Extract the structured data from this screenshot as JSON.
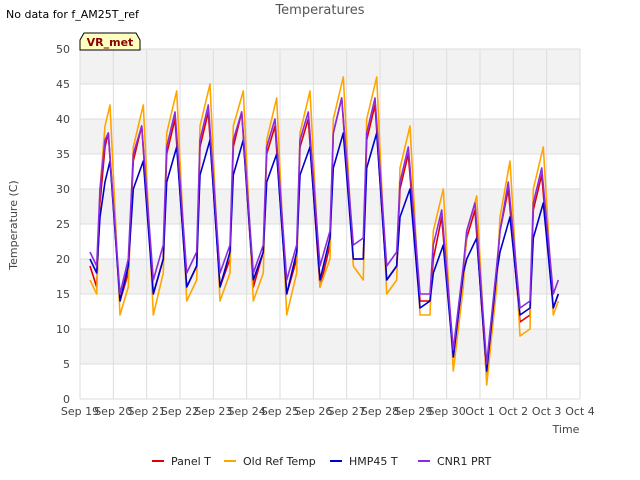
{
  "note": "No data for f_AM25T_ref",
  "badge": "VR_met",
  "chart_data": {
    "type": "line",
    "title": "Temperatures",
    "xlabel": "Time",
    "ylabel": "Temperature (C)",
    "ylim": [
      0,
      50
    ],
    "xlim": [
      0,
      15
    ],
    "y_ticks": [
      0,
      5,
      10,
      15,
      20,
      25,
      30,
      35,
      40,
      45,
      50
    ],
    "x_ticks": [
      {
        "x": 0,
        "label": "Sep 19"
      },
      {
        "x": 1,
        "label": "Sep 20"
      },
      {
        "x": 2,
        "label": "Sep 21"
      },
      {
        "x": 3,
        "label": "Sep 22"
      },
      {
        "x": 4,
        "label": "Sep 23"
      },
      {
        "x": 5,
        "label": "Sep 24"
      },
      {
        "x": 6,
        "label": "Sep 25"
      },
      {
        "x": 7,
        "label": "Sep 26"
      },
      {
        "x": 8,
        "label": "Sep 27"
      },
      {
        "x": 9,
        "label": "Sep 28"
      },
      {
        "x": 10,
        "label": "Sep 29"
      },
      {
        "x": 11,
        "label": "Sep 30"
      },
      {
        "x": 12,
        "label": "Oct 1"
      },
      {
        "x": 13,
        "label": "Oct 2"
      },
      {
        "x": 14,
        "label": "Oct 3"
      },
      {
        "x": 15,
        "label": "Oct 4"
      }
    ],
    "grid": true,
    "legend_position": "bottom",
    "series": [
      {
        "name": "Panel T",
        "color": "#dd0000",
        "x": [
          0.3,
          0.5,
          0.6,
          0.75,
          0.85,
          1.2,
          1.45,
          1.6,
          1.85,
          2.2,
          2.5,
          2.6,
          2.85,
          3.2,
          3.5,
          3.6,
          3.85,
          4.2,
          4.5,
          4.6,
          4.85,
          5.2,
          5.5,
          5.6,
          5.85,
          6.2,
          6.5,
          6.6,
          6.85,
          7.2,
          7.5,
          7.6,
          7.85,
          8.2,
          8.5,
          8.6,
          8.85,
          9.2,
          9.5,
          9.6,
          9.85,
          10.2,
          10.5,
          10.6,
          10.85,
          11.2,
          11.5,
          11.6,
          11.85,
          12.2,
          12.5,
          12.6,
          12.85,
          13.2,
          13.5,
          13.6,
          13.85,
          14.2,
          14.35
        ],
        "y": [
          19,
          16,
          28,
          36,
          38,
          14,
          18,
          34,
          39,
          15,
          20,
          35,
          40,
          16,
          19,
          36,
          41,
          16,
          20,
          36,
          41,
          16,
          21,
          35,
          39,
          15,
          20,
          36,
          40,
          16,
          22,
          38,
          43,
          20,
          20,
          37,
          42,
          17,
          19,
          30,
          35,
          14,
          14,
          20,
          26,
          6,
          18,
          23,
          27,
          3,
          18,
          24,
          30,
          11,
          12,
          27,
          32,
          13,
          15
        ]
      },
      {
        "name": "Old Ref Temp",
        "color": "#ffa500",
        "x": [
          0.3,
          0.5,
          0.6,
          0.75,
          0.9,
          1.2,
          1.45,
          1.6,
          1.9,
          2.2,
          2.5,
          2.6,
          2.9,
          3.2,
          3.5,
          3.6,
          3.9,
          4.2,
          4.5,
          4.6,
          4.9,
          5.2,
          5.5,
          5.6,
          5.9,
          6.2,
          6.5,
          6.6,
          6.9,
          7.2,
          7.5,
          7.6,
          7.9,
          8.2,
          8.5,
          8.6,
          8.9,
          9.2,
          9.5,
          9.6,
          9.9,
          10.2,
          10.5,
          10.6,
          10.9,
          11.2,
          11.5,
          11.6,
          11.9,
          12.2,
          12.5,
          12.6,
          12.9,
          13.2,
          13.5,
          13.6,
          13.9,
          14.2,
          14.35
        ],
        "y": [
          17,
          15,
          30,
          39,
          42,
          12,
          16,
          36,
          42,
          12,
          18,
          38,
          44,
          14,
          17,
          39,
          45,
          14,
          18,
          39,
          44,
          14,
          18,
          37,
          43,
          12,
          18,
          38,
          44,
          16,
          20,
          40,
          46,
          19,
          17,
          40,
          46,
          15,
          17,
          33,
          39,
          12,
          12,
          24,
          30,
          4,
          16,
          24,
          29,
          2,
          16,
          26,
          34,
          9,
          10,
          30,
          36,
          12,
          14
        ]
      },
      {
        "name": "HMP45 T",
        "color": "#0000cc",
        "x": [
          0.3,
          0.5,
          0.6,
          0.75,
          0.9,
          1.2,
          1.45,
          1.6,
          1.9,
          2.2,
          2.5,
          2.6,
          2.9,
          3.2,
          3.5,
          3.6,
          3.9,
          4.2,
          4.5,
          4.6,
          4.9,
          5.2,
          5.5,
          5.6,
          5.9,
          6.2,
          6.5,
          6.6,
          6.9,
          7.2,
          7.5,
          7.6,
          7.9,
          8.2,
          8.5,
          8.6,
          8.9,
          9.2,
          9.5,
          9.6,
          9.9,
          10.2,
          10.5,
          10.6,
          10.9,
          11.2,
          11.5,
          11.6,
          11.9,
          12.2,
          12.5,
          12.6,
          12.9,
          13.2,
          13.5,
          13.6,
          13.9,
          14.2,
          14.35
        ],
        "y": [
          20,
          18,
          26,
          31,
          34,
          14,
          19,
          30,
          34,
          15,
          20,
          31,
          36,
          16,
          19,
          32,
          37,
          16,
          21,
          32,
          37,
          17,
          21,
          31,
          35,
          15,
          21,
          32,
          36,
          17,
          23,
          33,
          38,
          20,
          20,
          33,
          38,
          17,
          19,
          26,
          30,
          13,
          14,
          18,
          22,
          6,
          18,
          20,
          23,
          4,
          18,
          21,
          26,
          12,
          13,
          23,
          28,
          13,
          15
        ]
      },
      {
        "name": "CNR1 PRT",
        "color": "#8a2be2",
        "x": [
          0.3,
          0.5,
          0.6,
          0.75,
          0.85,
          1.2,
          1.45,
          1.6,
          1.85,
          2.2,
          2.5,
          2.6,
          2.85,
          3.2,
          3.5,
          3.6,
          3.85,
          4.2,
          4.5,
          4.6,
          4.85,
          5.2,
          5.5,
          5.6,
          5.85,
          6.2,
          6.5,
          6.6,
          6.85,
          7.2,
          7.5,
          7.6,
          7.85,
          8.2,
          8.5,
          8.6,
          8.85,
          9.2,
          9.5,
          9.6,
          9.85,
          10.2,
          10.5,
          10.6,
          10.85,
          11.2,
          11.5,
          11.6,
          11.85,
          12.2,
          12.5,
          12.6,
          12.85,
          13.2,
          13.5,
          13.6,
          13.85,
          14.2,
          14.35
        ],
        "y": [
          21,
          19,
          30,
          37,
          38,
          15,
          20,
          35,
          39,
          17,
          22,
          36,
          41,
          18,
          21,
          37,
          42,
          18,
          22,
          37,
          41,
          18,
          22,
          36,
          40,
          17,
          22,
          37,
          41,
          19,
          24,
          38,
          43,
          22,
          23,
          38,
          43,
          19,
          21,
          31,
          36,
          15,
          15,
          22,
          27,
          7,
          19,
          24,
          28,
          5,
          19,
          24,
          31,
          13,
          14,
          28,
          33,
          15,
          17
        ]
      }
    ]
  }
}
